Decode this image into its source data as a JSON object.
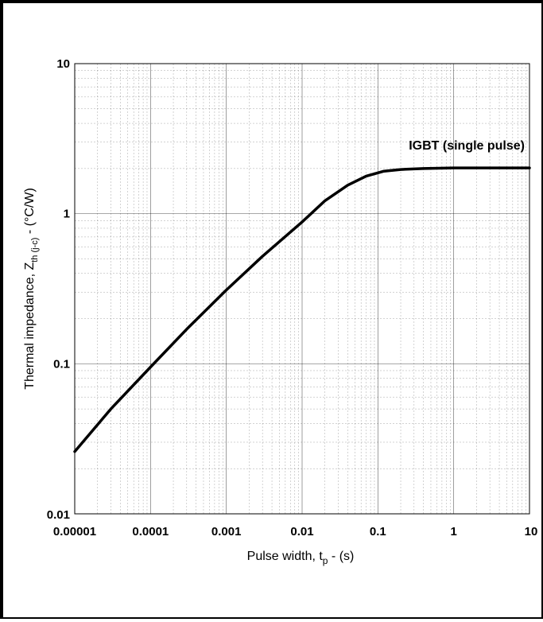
{
  "chart_data": {
    "type": "line",
    "scale": {
      "x": "log",
      "y": "log"
    },
    "xlim": [
      1e-05,
      10
    ],
    "ylim": [
      0.01,
      10
    ],
    "x_tick_labels": [
      "0.00001",
      "0.0001",
      "0.001",
      "0.01",
      "0.1",
      "1",
      "10"
    ],
    "y_tick_labels": [
      "10",
      "1",
      "0.1",
      "0.01"
    ],
    "xlabel": {
      "main": "Pulse width, t",
      "sub": "p",
      "tail": " - (s)"
    },
    "ylabel": {
      "main": "Thermal impedance, Z",
      "sub": "th (j-c)",
      "tail": " - (°C/W)"
    },
    "annotation": "IGBT  (single pulse)",
    "grid": true,
    "series": [
      {
        "color": "#000000",
        "points": [
          [
            1e-05,
            0.026
          ],
          [
            3e-05,
            0.05
          ],
          [
            0.0001,
            0.095
          ],
          [
            0.0003,
            0.17
          ],
          [
            0.001,
            0.31
          ],
          [
            0.003,
            0.52
          ],
          [
            0.01,
            0.88
          ],
          [
            0.02,
            1.22
          ],
          [
            0.04,
            1.55
          ],
          [
            0.07,
            1.78
          ],
          [
            0.12,
            1.92
          ],
          [
            0.2,
            1.97
          ],
          [
            0.4,
            2.0
          ],
          [
            1,
            2.02
          ],
          [
            10,
            2.02
          ]
        ]
      }
    ]
  }
}
